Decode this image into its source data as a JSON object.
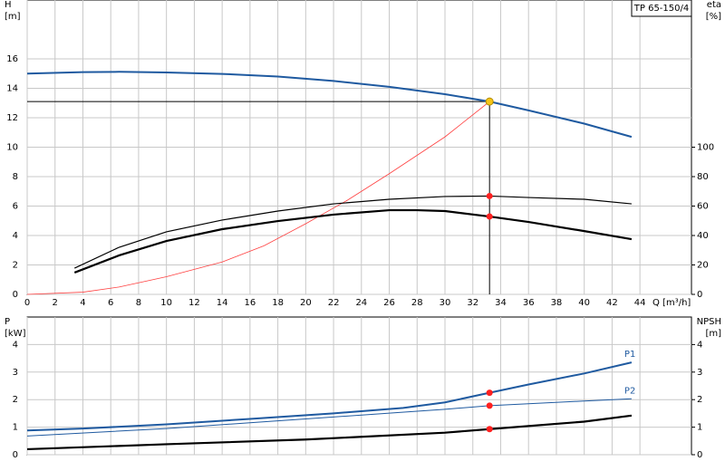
{
  "chart_data": [
    {
      "type": "line",
      "title": "TP 65-150/4",
      "x_label": "Q [m³/h]",
      "y_label": [
        "H",
        "[m]"
      ],
      "y2_label": [
        "eta",
        "[%]"
      ],
      "xlim": [
        0,
        47.7
      ],
      "xticks": [
        0,
        2,
        4,
        6,
        8,
        10,
        12,
        14,
        16,
        18,
        20,
        22,
        24,
        26,
        28,
        30,
        32,
        34,
        36,
        38,
        40,
        42,
        44
      ],
      "ylim": [
        0,
        20
      ],
      "yticks": [
        0,
        2,
        4,
        6,
        8,
        10,
        12,
        14,
        16
      ],
      "y2lim": [
        0,
        200
      ],
      "y2ticks": [
        0,
        20,
        40,
        60,
        80,
        100
      ],
      "grid": true,
      "series": [
        {
          "color": "#1f5aa0",
          "width": 2,
          "x": [
            0,
            4,
            6.6,
            10,
            14,
            18,
            22,
            26,
            30,
            33.2,
            36,
            40,
            43.4
          ],
          "values": [
            15.0,
            15.1,
            15.12,
            15.08,
            14.98,
            14.8,
            14.5,
            14.1,
            13.6,
            13.1,
            12.5,
            11.6,
            10.7
          ]
        },
        {
          "color": "#ff4040",
          "width": 0.8,
          "x": [
            0,
            4,
            6.6,
            10,
            14,
            17,
            20,
            23,
            26,
            30,
            33.2
          ],
          "values": [
            0,
            0.15,
            0.5,
            1.2,
            2.2,
            3.3,
            4.8,
            6.4,
            8.2,
            10.7,
            13.1
          ]
        },
        {
          "color": "#000000",
          "width": 1.2,
          "axis": "y2",
          "x": [
            3.4,
            6.6,
            10,
            14,
            18,
            22,
            26,
            30,
            33.2,
            36,
            40,
            43.4
          ],
          "values": [
            17.8,
            32,
            42.5,
            50.5,
            56.6,
            61.5,
            64.6,
            66.5,
            66.8,
            65.8,
            64.6,
            61.5
          ]
        },
        {
          "color": "#000000",
          "width": 2.2,
          "axis": "y2",
          "x": [
            3.4,
            6.6,
            10,
            14,
            18,
            22,
            26,
            28,
            30,
            33.2,
            36,
            40,
            43.4
          ],
          "values": [
            14.8,
            26.5,
            36.3,
            44.3,
            49.8,
            54.2,
            57.2,
            57.2,
            56.6,
            52.9,
            49.2,
            43,
            37.5
          ]
        }
      ],
      "points": [
        {
          "x": 33.2,
          "y": 66.8,
          "axis": "y2",
          "color": "#ff2020"
        },
        {
          "x": 33.2,
          "y": 52.9,
          "axis": "y2",
          "color": "#ff2020"
        }
      ],
      "duty_point": {
        "x": 33.2,
        "y": 13.1,
        "color": "#f5c518"
      }
    },
    {
      "type": "line",
      "y_label": [
        "P",
        "[kW]"
      ],
      "y2_label": [
        "NPSH",
        "[m]"
      ],
      "xlim": [
        0,
        47.7
      ],
      "xticks": [
        0,
        2,
        4,
        6,
        8,
        10,
        12,
        14,
        16,
        18,
        20,
        22,
        24,
        26,
        28,
        30,
        32,
        34,
        36,
        38,
        40,
        42,
        44
      ],
      "ylim": [
        0,
        5
      ],
      "yticks": [
        0,
        1,
        2,
        3,
        4
      ],
      "y2lim": [
        0,
        5
      ],
      "y2ticks": [
        0,
        1,
        2,
        3,
        4
      ],
      "grid": true,
      "series": [
        {
          "name": "P1",
          "color": "#1f5aa0",
          "width": 2,
          "x": [
            0,
            4,
            10,
            16,
            22,
            27,
            30,
            33.2,
            36,
            40,
            43.4
          ],
          "values": [
            0.88,
            0.95,
            1.1,
            1.3,
            1.5,
            1.7,
            1.9,
            2.25,
            2.55,
            2.95,
            3.35
          ]
        },
        {
          "name": "P2",
          "color": "#1f5aa0",
          "width": 1,
          "x": [
            0,
            10,
            20,
            30,
            33.2,
            40,
            43.4
          ],
          "values": [
            0.68,
            0.95,
            1.3,
            1.65,
            1.78,
            1.95,
            2.03
          ]
        },
        {
          "color": "#000000",
          "width": 2.2,
          "axis": "y2",
          "x": [
            0,
            10,
            20,
            30,
            33.2,
            40,
            43.4
          ],
          "values": [
            0.2,
            0.38,
            0.55,
            0.8,
            0.93,
            1.2,
            1.42
          ]
        }
      ],
      "points": [
        {
          "x": 33.2,
          "y": 2.25,
          "color": "#ff2020"
        },
        {
          "x": 33.2,
          "y": 1.78,
          "color": "#ff2020"
        },
        {
          "x": 33.2,
          "y": 0.93,
          "axis": "y2",
          "color": "#ff2020"
        }
      ]
    }
  ]
}
